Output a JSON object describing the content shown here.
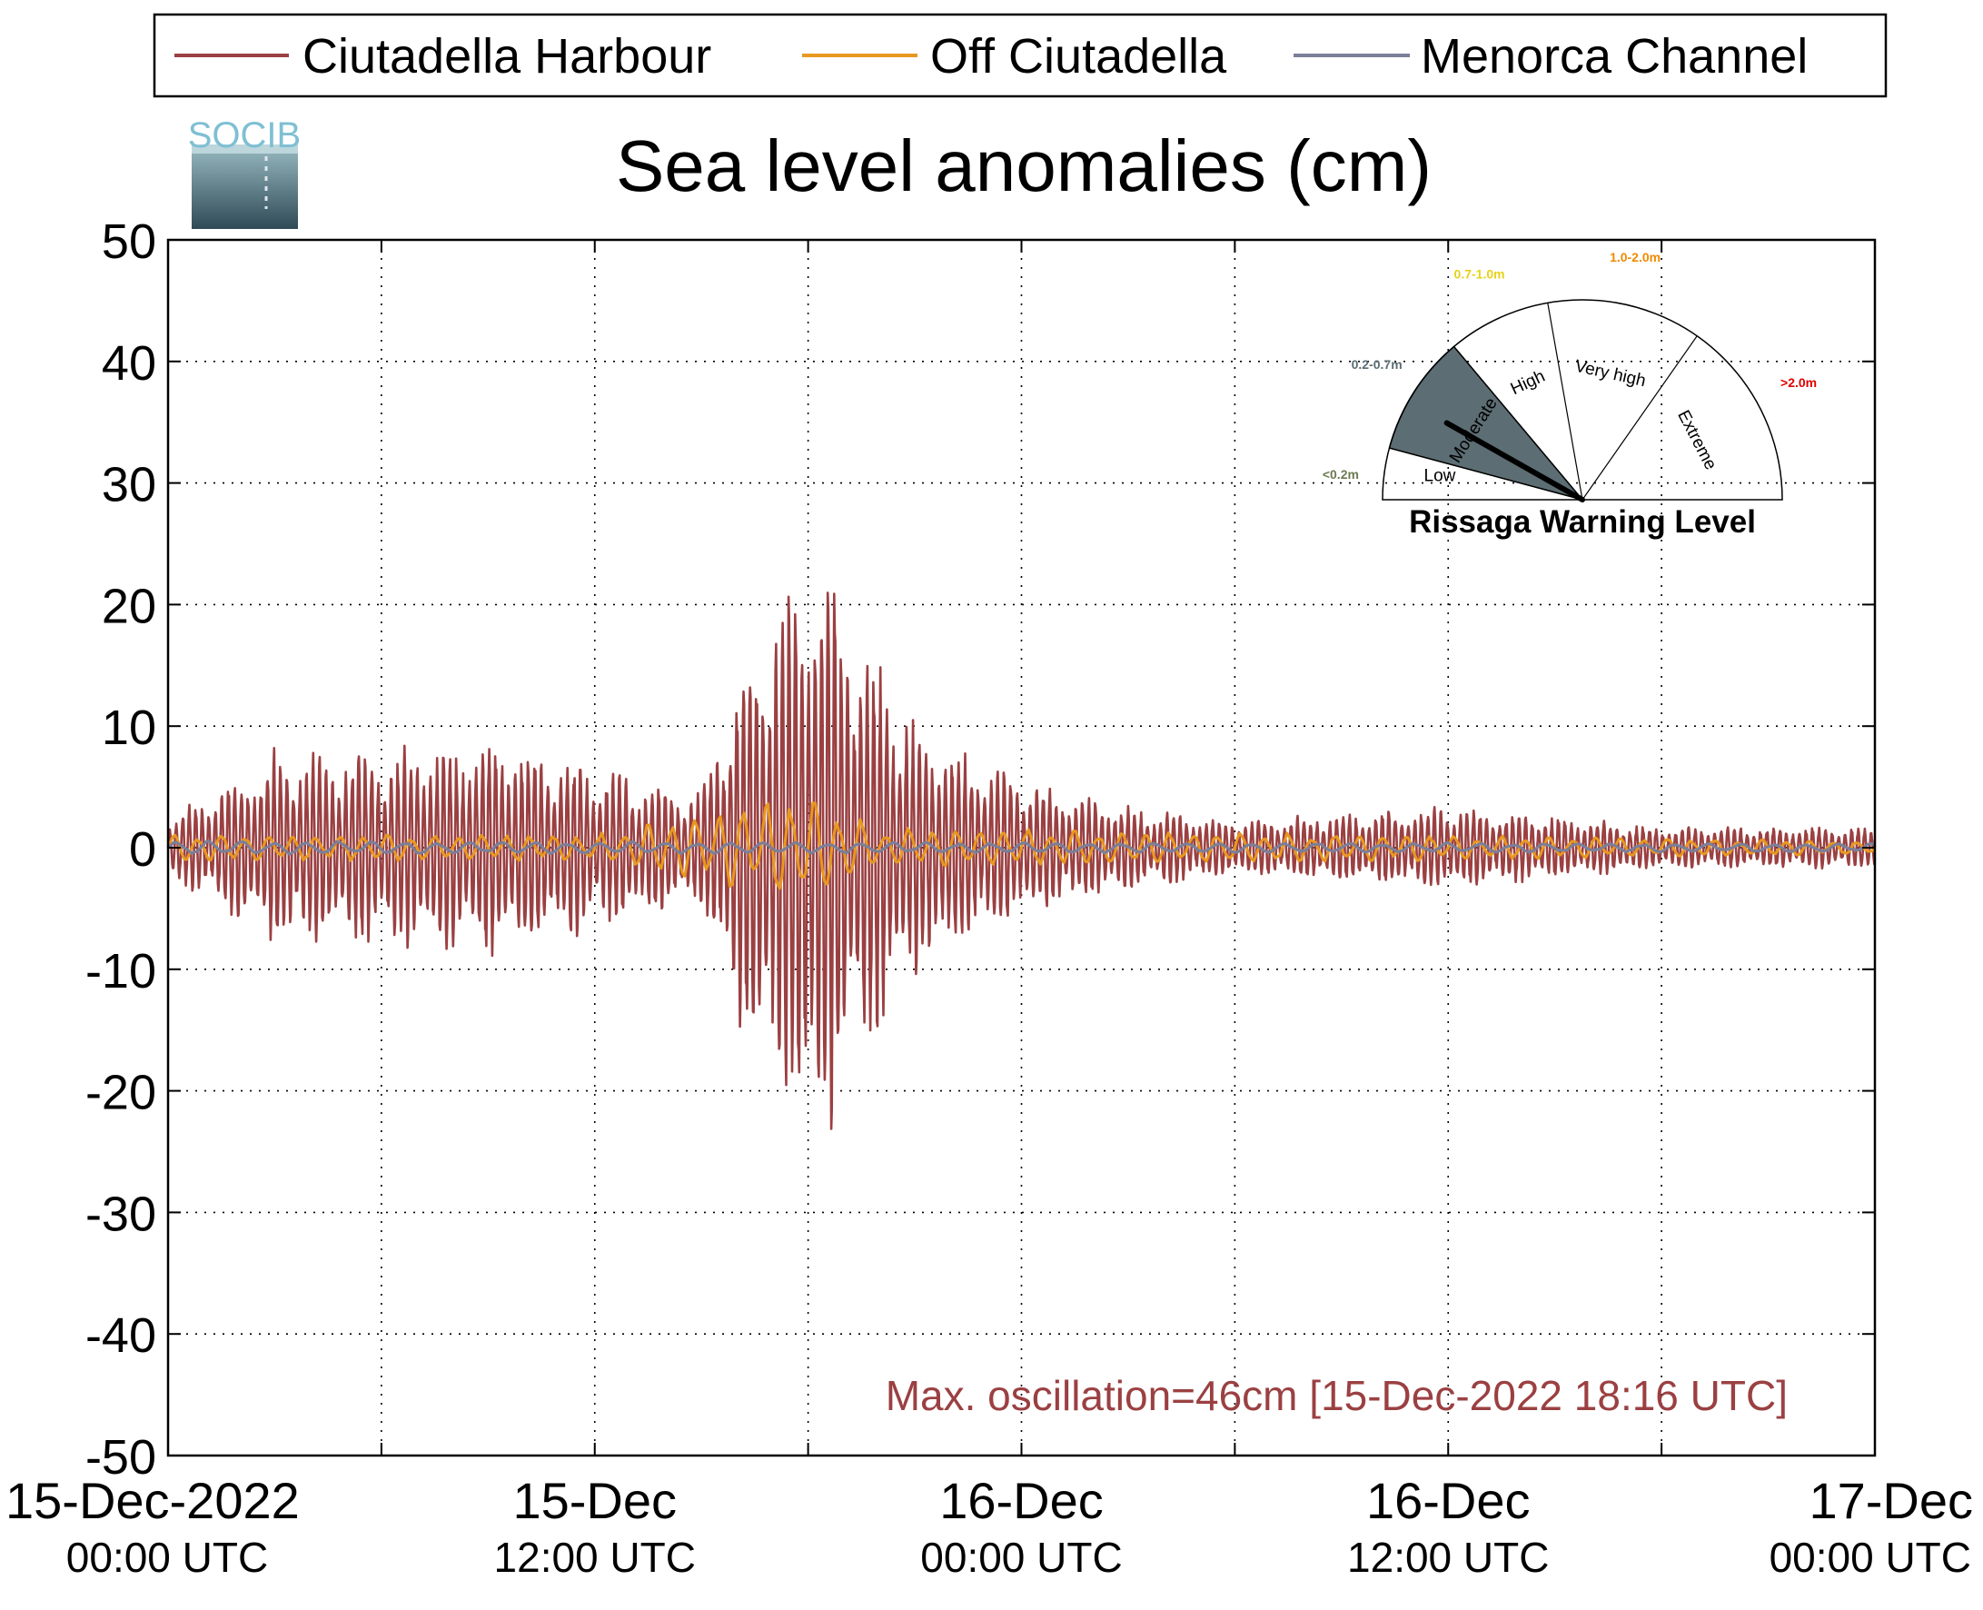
{
  "chart_data": {
    "type": "line",
    "title": "Sea level anomalies (cm)",
    "xlabel": "",
    "ylabel": "",
    "ylim": [
      -50,
      50
    ],
    "xlim": [
      "2022-12-15 00:00",
      "2022-12-17 00:00"
    ],
    "yticks": [
      50,
      40,
      30,
      20,
      10,
      0,
      -10,
      -20,
      -30,
      -40,
      -50
    ],
    "yticklabels": [
      "50",
      "40",
      "30",
      "20",
      "10",
      "0",
      "-10",
      "-20",
      "-30",
      "-40",
      "-50"
    ],
    "xticks": [
      {
        "date": "2022-12-15 00:00",
        "line1": "15-Dec-2022",
        "line2": "00:00 UTC"
      },
      {
        "date": "2022-12-15 12:00",
        "line1": "15-Dec",
        "line2": "12:00 UTC"
      },
      {
        "date": "2022-12-16 00:00",
        "line1": "16-Dec",
        "line2": "00:00 UTC"
      },
      {
        "date": "2022-12-16 12:00",
        "line1": "16-Dec",
        "line2": "12:00 UTC"
      },
      {
        "date": "2022-12-17 00:00",
        "line1": "17-Dec",
        "line2": "00:00 UTC"
      }
    ],
    "grid": true,
    "legend_position": "top",
    "series": [
      {
        "name": "Ciutadella Harbour",
        "color": "#9b4042",
        "oscillation_envelope_cm": [
          {
            "time": "2022-12-15 00:00",
            "amplitude": 2
          },
          {
            "time": "2022-12-15 03:00",
            "amplitude": 7
          },
          {
            "time": "2022-12-15 06:00",
            "amplitude": 7
          },
          {
            "time": "2022-12-15 09:00",
            "amplitude": 8
          },
          {
            "time": "2022-12-15 12:00",
            "amplitude": 6
          },
          {
            "time": "2022-12-15 15:00",
            "amplitude": 4
          },
          {
            "time": "2022-12-15 16:00",
            "amplitude": 13
          },
          {
            "time": "2022-12-15 18:16",
            "amplitude": 23
          },
          {
            "time": "2022-12-15 19:00",
            "amplitude": 18
          },
          {
            "time": "2022-12-15 21:00",
            "amplitude": 9
          },
          {
            "time": "2022-12-16 00:00",
            "amplitude": 5
          },
          {
            "time": "2022-12-16 03:00",
            "amplitude": 3
          },
          {
            "time": "2022-12-16 06:00",
            "amplitude": 2
          },
          {
            "time": "2022-12-16 12:00",
            "amplitude": 3
          },
          {
            "time": "2022-12-16 18:00",
            "amplitude": 1.5
          },
          {
            "time": "2022-12-17 00:00",
            "amplitude": 1.5
          }
        ]
      },
      {
        "name": "Off Ciutadella",
        "color": "#e89820",
        "oscillation_envelope_cm": [
          {
            "time": "2022-12-15 00:00",
            "amplitude": 1
          },
          {
            "time": "2022-12-15 12:00",
            "amplitude": 1
          },
          {
            "time": "2022-12-15 16:00",
            "amplitude": 3
          },
          {
            "time": "2022-12-15 18:00",
            "amplitude": 4
          },
          {
            "time": "2022-12-15 20:00",
            "amplitude": 1.5
          },
          {
            "time": "2022-12-17 00:00",
            "amplitude": 0.5
          }
        ]
      },
      {
        "name": "Menorca Channel",
        "color": "#7a7f9a",
        "oscillation_envelope_cm": [
          {
            "time": "2022-12-15 00:00",
            "amplitude": 0.5
          },
          {
            "time": "2022-12-17 00:00",
            "amplitude": 0.3
          }
        ]
      }
    ],
    "annotation": "Max. oscillation=46cm [15-Dec-2022 18:16 UTC]",
    "annotation_color": "#9b4042"
  },
  "logo": {
    "text": "SOCIB"
  },
  "gauge": {
    "title": "Rissaga Warning Level",
    "current_level": "Moderate",
    "sectors": [
      {
        "label": "Low",
        "range": "<0.2m",
        "color": "#6b7a52"
      },
      {
        "label": "Moderate",
        "range": "0.2-0.7m",
        "color": "#5c6d73"
      },
      {
        "label": "High",
        "range": "0.7-1.0m",
        "color": "#e6d21a"
      },
      {
        "label": "Very high",
        "range": "1.0-2.0m",
        "color": "#f08a00"
      },
      {
        "label": "Extreme",
        "range": ">2.0m",
        "color": "#e00000"
      }
    ]
  }
}
